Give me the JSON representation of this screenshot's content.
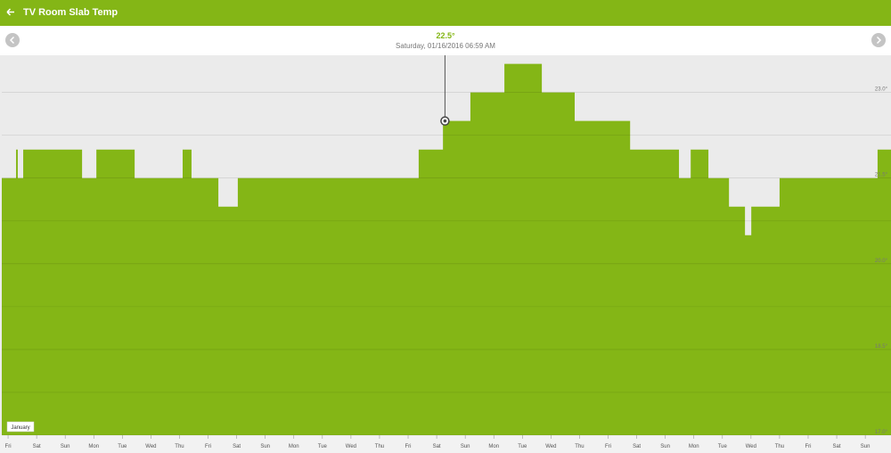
{
  "header": {
    "title": "TV Room Slab Temp"
  },
  "chart_data": {
    "type": "area",
    "color": "#84b616",
    "cursor": {
      "x": 15.29,
      "value": 22.5,
      "label": "22.5°",
      "date": "Saturday, 01/16/2016 06:59 AM"
    },
    "period_label": "January",
    "x": [
      -0.22,
      0.28,
      0.34,
      0.53,
      2.59,
      3.09,
      4.43,
      6.11,
      6.42,
      7.36,
      8.04,
      14.37,
      15.22,
      16.18,
      17.37,
      18.68,
      19.83,
      21.77,
      23.48,
      23.89,
      24.51,
      25.23,
      25.79,
      26.01,
      27.0,
      30.43,
      30.9
    ],
    "values": [
      21.5,
      22,
      21.5,
      22,
      21.5,
      22,
      21.5,
      22,
      21.5,
      21,
      21.5,
      22,
      22.5,
      23,
      23.5,
      23,
      22.5,
      22,
      21.5,
      22,
      21.5,
      21,
      20.5,
      21,
      21.5,
      22,
      22
    ],
    "xlim": [
      -0.22,
      30.9
    ],
    "xticks": [
      {
        "value": 0,
        "label": "Fri"
      },
      {
        "value": 1,
        "label": "Sat"
      },
      {
        "value": 2,
        "label": "Sun"
      },
      {
        "value": 3,
        "label": "Mon"
      },
      {
        "value": 4,
        "label": "Tue"
      },
      {
        "value": 5,
        "label": "Wed"
      },
      {
        "value": 6,
        "label": "Thu"
      },
      {
        "value": 7,
        "label": "Fri"
      },
      {
        "value": 8,
        "label": "Sat"
      },
      {
        "value": 9,
        "label": "Sun"
      },
      {
        "value": 10,
        "label": "Mon"
      },
      {
        "value": 11,
        "label": "Tue"
      },
      {
        "value": 12,
        "label": "Wed"
      },
      {
        "value": 13,
        "label": "Thu"
      },
      {
        "value": 14,
        "label": "Fri"
      },
      {
        "value": 15,
        "label": "Sat"
      },
      {
        "value": 16,
        "label": "Sun"
      },
      {
        "value": 17,
        "label": "Mon"
      },
      {
        "value": 18,
        "label": "Tue"
      },
      {
        "value": 19,
        "label": "Wed"
      },
      {
        "value": 20,
        "label": "Thu"
      },
      {
        "value": 21,
        "label": "Fri"
      },
      {
        "value": 22,
        "label": "Sat"
      },
      {
        "value": 23,
        "label": "Sun"
      },
      {
        "value": 24,
        "label": "Mon"
      },
      {
        "value": 25,
        "label": "Tue"
      },
      {
        "value": 26,
        "label": "Wed"
      },
      {
        "value": 27,
        "label": "Thu"
      },
      {
        "value": 28,
        "label": "Fri"
      },
      {
        "value": 29,
        "label": "Sat"
      },
      {
        "value": 30,
        "label": "Sun"
      }
    ],
    "ylim": [
      17,
      23.65
    ],
    "yticks": [
      {
        "value": 23,
        "label": "23.0°"
      },
      {
        "value": 21.5,
        "label": "21.5°"
      },
      {
        "value": 20,
        "label": "20.0°"
      },
      {
        "value": 18.5,
        "label": "18.5°"
      },
      {
        "value": 17,
        "label": "17.0°"
      }
    ],
    "ygrid_minor": [
      22.25,
      20.75,
      19.25,
      17.75
    ],
    "grid": true
  }
}
